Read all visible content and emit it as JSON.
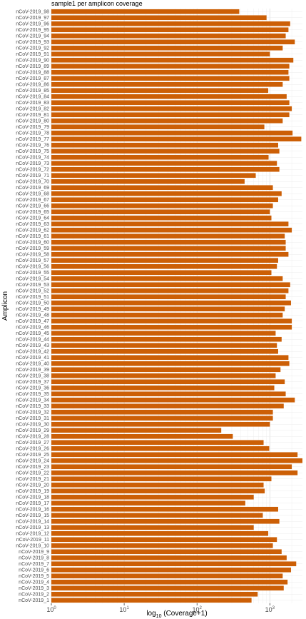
{
  "chart_data": {
    "type": "bar",
    "orientation": "horizontal",
    "title": "sample1 per amplicon coverage",
    "ylabel": "Amplicon",
    "xlabel_parts": [
      "log",
      "10",
      " (Coverage+1)"
    ],
    "x_scale": "log10",
    "xlim": [
      1,
      2800
    ],
    "x_ticks": [
      {
        "value": 1,
        "label_base": "10",
        "label_exp": "0"
      },
      {
        "value": 10,
        "label_base": "10",
        "label_exp": "1"
      },
      {
        "value": 100,
        "label_base": "10",
        "label_exp": "2"
      },
      {
        "value": 1000,
        "label_base": "10",
        "label_exp": "3"
      }
    ],
    "grid": true,
    "bar_color": "#cc5f06",
    "categories": [
      "nCoV-2019_98",
      "nCoV-2019_97",
      "nCoV-2019_96",
      "nCoV-2019_95",
      "nCoV-2019_94",
      "nCoV-2019_93",
      "nCoV-2019_92",
      "nCoV-2019_91",
      "nCoV-2019_90",
      "nCoV-2019_89",
      "nCoV-2019_88",
      "nCoV-2019_87",
      "nCoV-2019_86",
      "nCoV-2019_85",
      "nCoV-2019_84",
      "nCoV-2019_83",
      "nCoV-2019_82",
      "nCoV-2019_81",
      "nCoV-2019_80",
      "nCoV-2019_79",
      "nCoV-2019_78",
      "nCoV-2019_77",
      "nCoV-2019_76",
      "nCoV-2019_75",
      "nCoV-2019_74",
      "nCoV-2019_73",
      "nCoV-2019_72",
      "nCoV-2019_71",
      "nCoV-2019_70",
      "nCoV-2019_69",
      "nCoV-2019_68",
      "nCoV-2019_67",
      "nCoV-2019_66",
      "nCoV-2019_65",
      "nCoV-2019_64",
      "nCoV-2019_63",
      "nCoV-2019_62",
      "nCoV-2019_61",
      "nCoV-2019_60",
      "nCoV-2019_59",
      "nCoV-2019_58",
      "nCoV-2019_57",
      "nCoV-2019_56",
      "nCoV-2019_55",
      "nCoV-2019_54",
      "nCoV-2019_53",
      "nCoV-2019_52",
      "nCoV-2019_51",
      "nCoV-2019_50",
      "nCoV-2019_49",
      "nCoV-2019_48",
      "nCoV-2019_47",
      "nCoV-2019_46",
      "nCoV-2019_45",
      "nCoV-2019_44",
      "nCoV-2019_43",
      "nCoV-2019_42",
      "nCoV-2019_41",
      "nCoV-2019_40",
      "nCoV-2019_39",
      "nCoV-2019_38",
      "nCoV-2019_37",
      "nCoV-2019_36",
      "nCoV-2019_35",
      "nCoV-2019_34",
      "nCoV-2019_33",
      "nCoV-2019_32",
      "nCoV-2019_31",
      "nCoV-2019_30",
      "nCoV-2019_29",
      "nCoV-2019_28",
      "nCoV-2019_27",
      "nCoV-2019_26",
      "nCoV-2019_25",
      "nCoV-2019_24",
      "nCoV-2019_23",
      "nCoV-2019_22",
      "nCoV-2019_21",
      "nCoV-2019_20",
      "nCoV-2019_19",
      "nCoV-2019_18",
      "nCoV-2019_17",
      "nCoV-2019_16",
      "nCoV-2019_15",
      "nCoV-2019_14",
      "nCoV-2019_13",
      "nCoV-2019_12",
      "nCoV-2019_11",
      "nCoV-2019_10",
      "nCoV-2019_9",
      "nCoV-2019_8",
      "nCoV-2019_7",
      "nCoV-2019_6",
      "nCoV-2019_5",
      "nCoV-2019_4",
      "nCoV-2019_3",
      "nCoV-2019_2",
      "nCoV-2019_1"
    ],
    "values": [
      380,
      900,
      1900,
      1800,
      1650,
      2200,
      1500,
      1000,
      2100,
      1850,
      1800,
      1850,
      1500,
      950,
      1700,
      1850,
      2000,
      1850,
      1500,
      840,
      2050,
      2700,
      1300,
      1350,
      960,
      1250,
      1350,
      640,
      450,
      1100,
      1450,
      1300,
      1100,
      1000,
      1050,
      1800,
      2000,
      1600,
      1650,
      1650,
      1800,
      1300,
      1250,
      1050,
      1500,
      1900,
      1800,
      1650,
      1950,
      1600,
      1500,
      2000,
      2000,
      1200,
      1450,
      1250,
      1300,
      1800,
      1850,
      1400,
      1200,
      1600,
      1150,
      1650,
      2200,
      1550,
      1100,
      1100,
      1000,
      215,
      310,
      820,
      980,
      2400,
      2800,
      2000,
      2400,
      1050,
      820,
      850,
      600,
      460,
      1300,
      800,
      1350,
      600,
      950,
      1250,
      1100,
      1450,
      1700,
      2300,
      1950,
      1500,
      1750,
      1550,
      680,
      560
    ]
  }
}
